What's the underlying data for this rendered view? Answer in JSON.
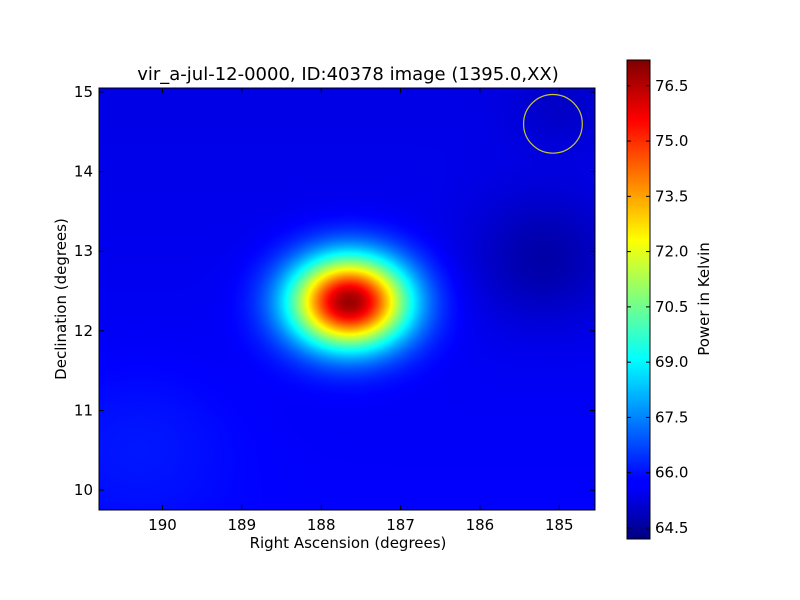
{
  "chart_data": {
    "type": "heatmap",
    "title": "vir_a-jul-12-0000, ID:40378 image (1395.0,XX)",
    "xlabel": "Right Ascension (degrees)",
    "ylabel": "Declination (degrees)",
    "xlim": [
      190.8,
      184.55
    ],
    "ylim": [
      9.75,
      15.05
    ],
    "x_ticks": [
      190,
      189,
      188,
      187,
      186,
      185
    ],
    "y_ticks": [
      10,
      11,
      12,
      13,
      14,
      15
    ],
    "colormap": "jet",
    "colorbar": {
      "label": "Power in Kelvin",
      "range": [
        64.2,
        77.2
      ],
      "ticks": [
        "64.5",
        "66.0",
        "67.5",
        "69.0",
        "70.5",
        "72.0",
        "73.5",
        "75.0",
        "76.5"
      ]
    },
    "background_level": 65.8,
    "sources": [
      {
        "ra": 187.65,
        "dec": 12.37,
        "peak": 77.0,
        "sigma_ra": 0.52,
        "sigma_dec": 0.4
      }
    ],
    "beam_circle": {
      "ra": 185.08,
      "dec": 14.6,
      "radius_deg": 0.37,
      "color": "#c8c832"
    },
    "grid": false
  }
}
